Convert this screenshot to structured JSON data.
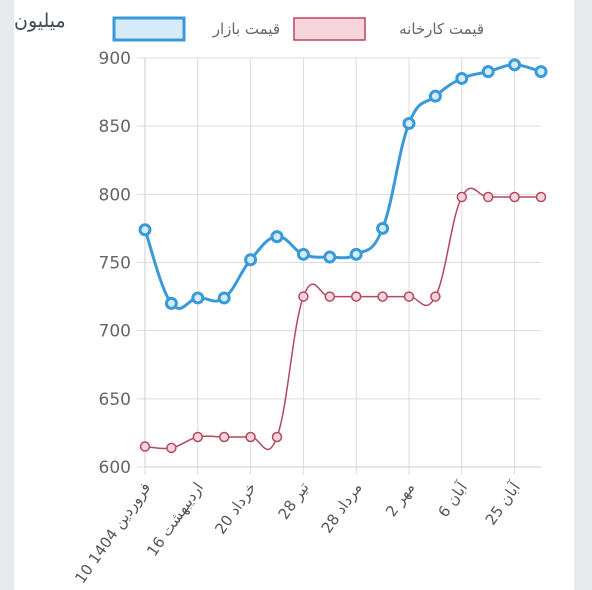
{
  "chart_data": {
    "type": "line",
    "unit_label": "میلیون",
    "x": [
      "10 فروردین 1404",
      "",
      "16 اردیبهشت",
      "",
      "20 خرداد",
      "",
      "28 تیر",
      "",
      "28 مرداد",
      "",
      "2 مهر",
      "",
      "6 آبان",
      "",
      "25 آبان",
      ""
    ],
    "tick_labels": [
      "10 فروردین 1404",
      "16 اردیبهشت",
      "20 خرداد",
      "28 تیر",
      "28 مرداد",
      "2 مهر",
      "6 آبان",
      "25 آبان"
    ],
    "yticks": [
      600,
      650,
      700,
      750,
      800,
      850,
      900
    ],
    "ylim": [
      600,
      900
    ],
    "grid": true,
    "legend_position": "top",
    "series": [
      {
        "name": "قیمت بازار",
        "color": "#3a9ad9",
        "values": [
          774,
          720,
          724,
          724,
          752,
          769,
          756,
          754,
          756,
          775,
          852,
          872,
          885,
          890,
          895,
          890
        ]
      },
      {
        "name": "قیمت کارخانه",
        "color": "#b5475f",
        "values": [
          615,
          614,
          622,
          622,
          622,
          622,
          725,
          725,
          725,
          725,
          725,
          725,
          798,
          798,
          798,
          798
        ]
      }
    ]
  }
}
